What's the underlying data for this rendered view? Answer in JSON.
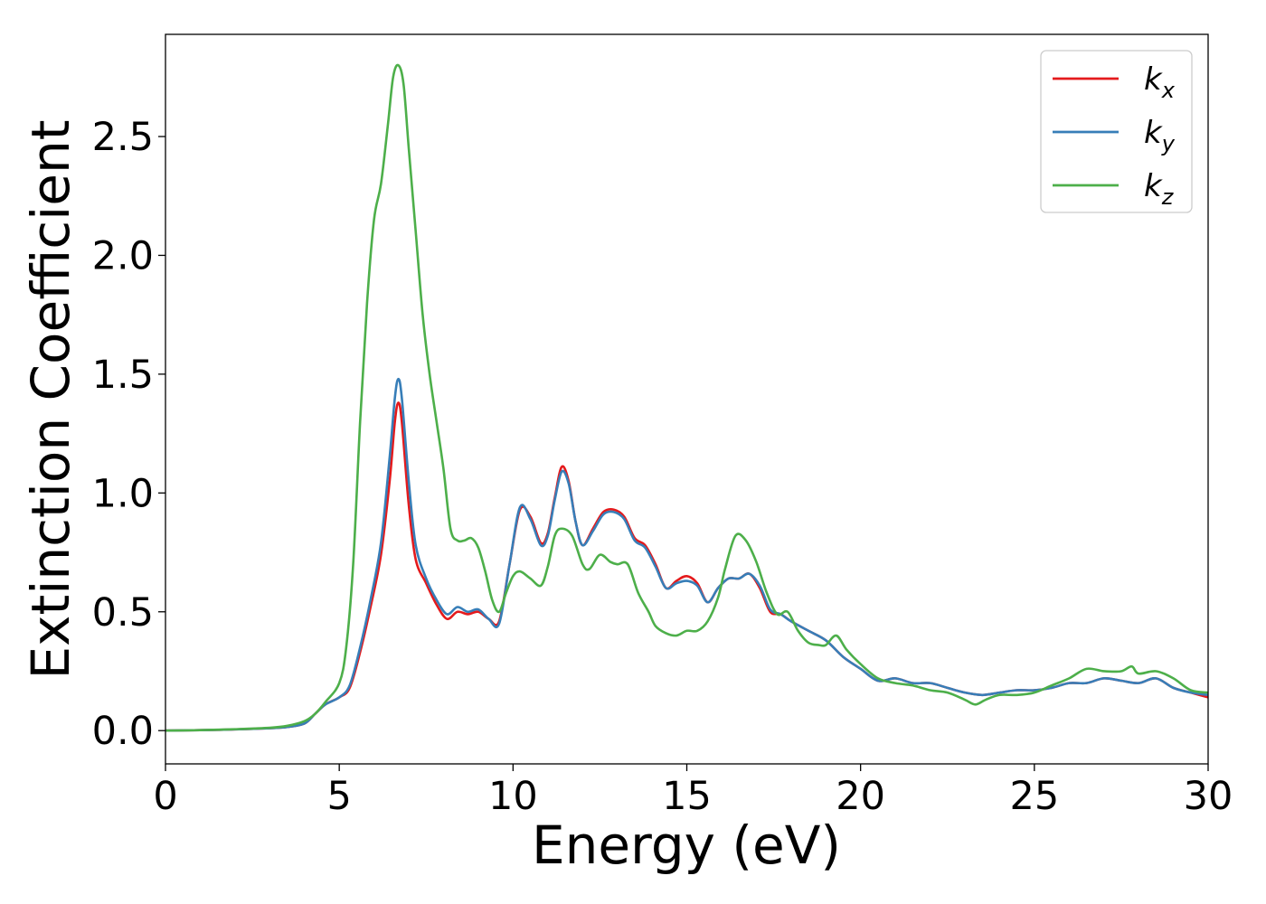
{
  "chart_data": {
    "type": "line",
    "title": "",
    "xlabel": "Energy (eV)",
    "ylabel": "Extinction Coefficient",
    "xlim": [
      0,
      30
    ],
    "ylim": [
      -0.14,
      2.93
    ],
    "xticks": [
      0,
      5,
      10,
      15,
      20,
      25,
      30
    ],
    "xtick_labels": [
      "0",
      "5",
      "10",
      "15",
      "20",
      "25",
      "30"
    ],
    "yticks": [
      0.0,
      0.5,
      1.0,
      1.5,
      2.0,
      2.5
    ],
    "ytick_labels": [
      "0.0",
      "0.5",
      "1.0",
      "1.5",
      "2.0",
      "2.5"
    ],
    "grid": false,
    "legend_position": "top-right",
    "series": [
      {
        "name": "k_x",
        "legend_base": "k",
        "legend_sub": "x",
        "color": "#e41a1c",
        "points": [
          [
            0,
            0.0
          ],
          [
            1,
            0.002
          ],
          [
            2,
            0.005
          ],
          [
            3,
            0.01
          ],
          [
            3.5,
            0.015
          ],
          [
            4,
            0.03
          ],
          [
            4.3,
            0.07
          ],
          [
            4.6,
            0.11
          ],
          [
            5,
            0.14
          ],
          [
            5.3,
            0.18
          ],
          [
            5.6,
            0.33
          ],
          [
            5.9,
            0.52
          ],
          [
            6.2,
            0.74
          ],
          [
            6.45,
            1.05
          ],
          [
            6.6,
            1.3
          ],
          [
            6.7,
            1.38
          ],
          [
            6.8,
            1.3
          ],
          [
            7,
            0.95
          ],
          [
            7.2,
            0.72
          ],
          [
            7.5,
            0.62
          ],
          [
            7.8,
            0.53
          ],
          [
            8.1,
            0.47
          ],
          [
            8.4,
            0.5
          ],
          [
            8.7,
            0.49
          ],
          [
            9,
            0.5
          ],
          [
            9.3,
            0.47
          ],
          [
            9.6,
            0.46
          ],
          [
            9.9,
            0.7
          ],
          [
            10.2,
            0.93
          ],
          [
            10.5,
            0.9
          ],
          [
            10.8,
            0.79
          ],
          [
            11,
            0.83
          ],
          [
            11.2,
            0.98
          ],
          [
            11.4,
            1.11
          ],
          [
            11.6,
            1.05
          ],
          [
            11.8,
            0.88
          ],
          [
            12,
            0.78
          ],
          [
            12.3,
            0.85
          ],
          [
            12.6,
            0.92
          ],
          [
            12.9,
            0.93
          ],
          [
            13.2,
            0.9
          ],
          [
            13.5,
            0.81
          ],
          [
            13.8,
            0.78
          ],
          [
            14.1,
            0.7
          ],
          [
            14.4,
            0.6
          ],
          [
            14.7,
            0.63
          ],
          [
            15,
            0.65
          ],
          [
            15.3,
            0.62
          ],
          [
            15.6,
            0.54
          ],
          [
            15.9,
            0.6
          ],
          [
            16.2,
            0.64
          ],
          [
            16.5,
            0.64
          ],
          [
            16.8,
            0.66
          ],
          [
            17.1,
            0.6
          ],
          [
            17.4,
            0.5
          ],
          [
            17.7,
            0.49
          ],
          [
            18,
            0.46
          ],
          [
            18.5,
            0.42
          ],
          [
            19,
            0.38
          ],
          [
            19.5,
            0.31
          ],
          [
            20,
            0.26
          ],
          [
            20.5,
            0.21
          ],
          [
            21,
            0.22
          ],
          [
            21.5,
            0.2
          ],
          [
            22,
            0.2
          ],
          [
            22.5,
            0.18
          ],
          [
            23,
            0.16
          ],
          [
            23.5,
            0.15
          ],
          [
            24,
            0.16
          ],
          [
            24.5,
            0.17
          ],
          [
            25,
            0.17
          ],
          [
            25.5,
            0.18
          ],
          [
            26,
            0.2
          ],
          [
            26.5,
            0.2
          ],
          [
            27,
            0.22
          ],
          [
            27.5,
            0.21
          ],
          [
            28,
            0.2
          ],
          [
            28.5,
            0.22
          ],
          [
            29,
            0.18
          ],
          [
            29.5,
            0.16
          ],
          [
            30,
            0.14
          ]
        ]
      },
      {
        "name": "k_y",
        "legend_base": "k",
        "legend_sub": "y",
        "color": "#377eb8",
        "points": [
          [
            0,
            0.0
          ],
          [
            1,
            0.002
          ],
          [
            2,
            0.005
          ],
          [
            3,
            0.01
          ],
          [
            3.5,
            0.015
          ],
          [
            4,
            0.03
          ],
          [
            4.3,
            0.07
          ],
          [
            4.6,
            0.11
          ],
          [
            5,
            0.14
          ],
          [
            5.3,
            0.19
          ],
          [
            5.6,
            0.35
          ],
          [
            5.9,
            0.55
          ],
          [
            6.2,
            0.79
          ],
          [
            6.45,
            1.15
          ],
          [
            6.6,
            1.4
          ],
          [
            6.7,
            1.48
          ],
          [
            6.8,
            1.4
          ],
          [
            7,
            1.05
          ],
          [
            7.2,
            0.78
          ],
          [
            7.5,
            0.64
          ],
          [
            7.8,
            0.55
          ],
          [
            8.1,
            0.49
          ],
          [
            8.4,
            0.52
          ],
          [
            8.7,
            0.5
          ],
          [
            9,
            0.51
          ],
          [
            9.3,
            0.47
          ],
          [
            9.6,
            0.45
          ],
          [
            9.9,
            0.7
          ],
          [
            10.2,
            0.94
          ],
          [
            10.5,
            0.89
          ],
          [
            10.8,
            0.78
          ],
          [
            11,
            0.82
          ],
          [
            11.2,
            0.97
          ],
          [
            11.4,
            1.09
          ],
          [
            11.6,
            1.04
          ],
          [
            11.8,
            0.88
          ],
          [
            12,
            0.78
          ],
          [
            12.3,
            0.84
          ],
          [
            12.6,
            0.91
          ],
          [
            12.9,
            0.92
          ],
          [
            13.2,
            0.89
          ],
          [
            13.5,
            0.8
          ],
          [
            13.8,
            0.77
          ],
          [
            14.1,
            0.69
          ],
          [
            14.4,
            0.6
          ],
          [
            14.7,
            0.62
          ],
          [
            15,
            0.63
          ],
          [
            15.3,
            0.61
          ],
          [
            15.6,
            0.54
          ],
          [
            15.9,
            0.6
          ],
          [
            16.2,
            0.64
          ],
          [
            16.5,
            0.64
          ],
          [
            16.8,
            0.66
          ],
          [
            17.1,
            0.61
          ],
          [
            17.4,
            0.51
          ],
          [
            17.7,
            0.49
          ],
          [
            18,
            0.46
          ],
          [
            18.5,
            0.42
          ],
          [
            19,
            0.38
          ],
          [
            19.5,
            0.31
          ],
          [
            20,
            0.26
          ],
          [
            20.5,
            0.21
          ],
          [
            21,
            0.22
          ],
          [
            21.5,
            0.2
          ],
          [
            22,
            0.2
          ],
          [
            22.5,
            0.18
          ],
          [
            23,
            0.16
          ],
          [
            23.5,
            0.15
          ],
          [
            24,
            0.16
          ],
          [
            24.5,
            0.17
          ],
          [
            25,
            0.17
          ],
          [
            25.5,
            0.18
          ],
          [
            26,
            0.2
          ],
          [
            26.5,
            0.2
          ],
          [
            27,
            0.22
          ],
          [
            27.5,
            0.21
          ],
          [
            28,
            0.2
          ],
          [
            28.5,
            0.22
          ],
          [
            29,
            0.18
          ],
          [
            29.5,
            0.16
          ],
          [
            30,
            0.15
          ]
        ]
      },
      {
        "name": "k_z",
        "legend_base": "k",
        "legend_sub": "z",
        "color": "#4daf4a",
        "points": [
          [
            0,
            0.0
          ],
          [
            1,
            0.002
          ],
          [
            2,
            0.006
          ],
          [
            3,
            0.012
          ],
          [
            3.5,
            0.02
          ],
          [
            4,
            0.04
          ],
          [
            4.3,
            0.07
          ],
          [
            4.6,
            0.12
          ],
          [
            5,
            0.2
          ],
          [
            5.2,
            0.35
          ],
          [
            5.4,
            0.7
          ],
          [
            5.6,
            1.3
          ],
          [
            5.8,
            1.8
          ],
          [
            6,
            2.15
          ],
          [
            6.2,
            2.3
          ],
          [
            6.4,
            2.55
          ],
          [
            6.55,
            2.75
          ],
          [
            6.7,
            2.8
          ],
          [
            6.85,
            2.72
          ],
          [
            7,
            2.45
          ],
          [
            7.2,
            2.1
          ],
          [
            7.4,
            1.75
          ],
          [
            7.6,
            1.5
          ],
          [
            7.8,
            1.3
          ],
          [
            8,
            1.1
          ],
          [
            8.2,
            0.85
          ],
          [
            8.4,
            0.8
          ],
          [
            8.6,
            0.8
          ],
          [
            8.8,
            0.81
          ],
          [
            9,
            0.77
          ],
          [
            9.2,
            0.67
          ],
          [
            9.4,
            0.55
          ],
          [
            9.6,
            0.5
          ],
          [
            9.8,
            0.58
          ],
          [
            10,
            0.65
          ],
          [
            10.2,
            0.67
          ],
          [
            10.5,
            0.64
          ],
          [
            10.8,
            0.61
          ],
          [
            11,
            0.69
          ],
          [
            11.2,
            0.82
          ],
          [
            11.4,
            0.85
          ],
          [
            11.7,
            0.82
          ],
          [
            12,
            0.7
          ],
          [
            12.2,
            0.68
          ],
          [
            12.5,
            0.74
          ],
          [
            12.8,
            0.71
          ],
          [
            13,
            0.7
          ],
          [
            13.3,
            0.7
          ],
          [
            13.6,
            0.58
          ],
          [
            13.9,
            0.5
          ],
          [
            14.1,
            0.44
          ],
          [
            14.4,
            0.41
          ],
          [
            14.7,
            0.4
          ],
          [
            15,
            0.42
          ],
          [
            15.3,
            0.42
          ],
          [
            15.6,
            0.46
          ],
          [
            15.9,
            0.56
          ],
          [
            16.1,
            0.68
          ],
          [
            16.4,
            0.82
          ],
          [
            16.7,
            0.8
          ],
          [
            17,
            0.71
          ],
          [
            17.3,
            0.58
          ],
          [
            17.6,
            0.49
          ],
          [
            17.9,
            0.5
          ],
          [
            18.2,
            0.42
          ],
          [
            18.5,
            0.37
          ],
          [
            18.8,
            0.36
          ],
          [
            19,
            0.36
          ],
          [
            19.3,
            0.4
          ],
          [
            19.6,
            0.34
          ],
          [
            20,
            0.28
          ],
          [
            20.5,
            0.22
          ],
          [
            21,
            0.2
          ],
          [
            21.5,
            0.19
          ],
          [
            22,
            0.17
          ],
          [
            22.5,
            0.16
          ],
          [
            23,
            0.13
          ],
          [
            23.3,
            0.11
          ],
          [
            23.6,
            0.13
          ],
          [
            24,
            0.15
          ],
          [
            24.5,
            0.15
          ],
          [
            25,
            0.16
          ],
          [
            25.5,
            0.19
          ],
          [
            26,
            0.22
          ],
          [
            26.5,
            0.26
          ],
          [
            27,
            0.25
          ],
          [
            27.5,
            0.25
          ],
          [
            27.8,
            0.27
          ],
          [
            28,
            0.24
          ],
          [
            28.5,
            0.25
          ],
          [
            29,
            0.22
          ],
          [
            29.5,
            0.17
          ],
          [
            30,
            0.16
          ]
        ]
      }
    ]
  }
}
